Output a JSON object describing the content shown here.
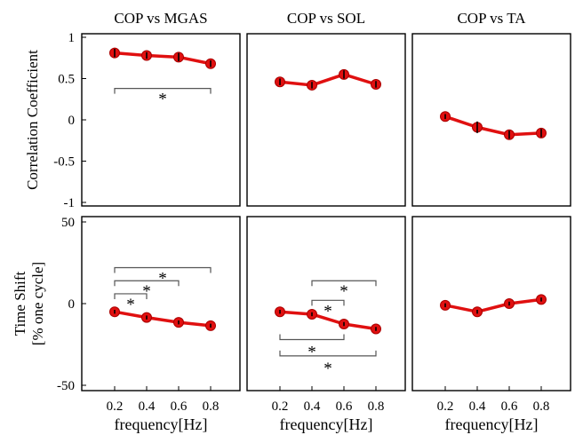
{
  "chart_data": [
    {
      "type": "line",
      "title": "COP vs MGAS",
      "ylabel": "Correlation Coefficient",
      "xlabel": "",
      "ylim": [
        -1,
        1
      ],
      "yticks": [
        "1",
        "0.5",
        "0",
        "-0.5",
        "-1"
      ],
      "x": [
        0.2,
        0.4,
        0.6,
        0.8
      ],
      "series": [
        {
          "values": [
            0.81,
            0.78,
            0.76,
            0.68
          ],
          "errors": [
            0.05,
            0.04,
            0.05,
            0.04
          ]
        }
      ],
      "significance": [
        {
          "from": 0.2,
          "to": 0.8,
          "y": 0.38,
          "label": "*"
        }
      ],
      "color": "#e01010"
    },
    {
      "type": "line",
      "title": "COP vs SOL",
      "xlabel": "",
      "ylim": [
        -1,
        1
      ],
      "x": [
        0.2,
        0.4,
        0.6,
        0.8
      ],
      "series": [
        {
          "values": [
            0.46,
            0.42,
            0.55,
            0.43
          ],
          "errors": [
            0.04,
            0.04,
            0.05,
            0.04
          ]
        }
      ],
      "significance": [],
      "color": "#e01010"
    },
    {
      "type": "line",
      "title": "COP vs TA",
      "xlabel": "",
      "ylim": [
        -1,
        1
      ],
      "x": [
        0.2,
        0.4,
        0.6,
        0.8
      ],
      "series": [
        {
          "values": [
            0.04,
            -0.09,
            -0.18,
            -0.16
          ],
          "errors": [
            0.03,
            0.07,
            0.05,
            0.05
          ]
        }
      ],
      "significance": [],
      "color": "#e01010"
    },
    {
      "type": "line",
      "ylabel": "Time Shift [% one cycle]",
      "xlabel": "frequency[Hz]",
      "ylim": [
        -50,
        50
      ],
      "yticks": [
        "50",
        "0",
        "-50"
      ],
      "xticks": [
        "0.2",
        "0.4",
        "0.6",
        "0.8"
      ],
      "x": [
        0.2,
        0.4,
        0.6,
        0.8
      ],
      "series": [
        {
          "values": [
            -5,
            -8.5,
            -11.5,
            -13.5
          ],
          "errors": [
            1.2,
            1.2,
            1.2,
            1.2
          ]
        }
      ],
      "significance": [
        {
          "from": 0.2,
          "to": 0.8,
          "y": 22,
          "label": "*"
        },
        {
          "from": 0.2,
          "to": 0.6,
          "y": 14,
          "label": "*"
        },
        {
          "from": 0.2,
          "to": 0.4,
          "y": 6,
          "label": "*"
        }
      ],
      "color": "#e01010"
    },
    {
      "type": "line",
      "xlabel": "frequency[Hz]",
      "ylim": [
        -50,
        50
      ],
      "xticks": [
        "0.2",
        "0.4",
        "0.6",
        "0.8"
      ],
      "x": [
        0.2,
        0.4,
        0.6,
        0.8
      ],
      "series": [
        {
          "values": [
            -5,
            -6.5,
            -12.5,
            -15.5
          ],
          "errors": [
            1.2,
            1.2,
            1.2,
            1.2
          ]
        }
      ],
      "significance": [
        {
          "from": 0.4,
          "to": 0.8,
          "y": 14,
          "label": "*"
        },
        {
          "from": 0.4,
          "to": 0.6,
          "y": 2,
          "label": "*"
        },
        {
          "from": 0.2,
          "to": 0.6,
          "y": -22,
          "label": "*",
          "below": true
        },
        {
          "from": 0.2,
          "to": 0.8,
          "y": -32,
          "label": "*",
          "below": true
        }
      ],
      "color": "#e01010"
    },
    {
      "type": "line",
      "xlabel": "frequency[Hz]",
      "ylim": [
        -50,
        50
      ],
      "xticks": [
        "0.2",
        "0.4",
        "0.6",
        "0.8"
      ],
      "x": [
        0.2,
        0.4,
        0.6,
        0.8
      ],
      "series": [
        {
          "values": [
            -1,
            -5,
            0,
            2.5
          ],
          "errors": [
            1.2,
            1.2,
            1.2,
            1.2
          ]
        }
      ],
      "significance": [],
      "color": "#e01010"
    }
  ]
}
